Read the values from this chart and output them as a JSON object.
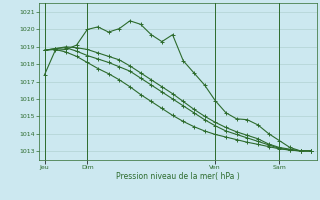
{
  "xlabel": "Pression niveau de la mer( hPa )",
  "bg_color": "#cce8f0",
  "grid_color": "#aacccc",
  "line_color": "#2d6b2d",
  "ylim": [
    1012.5,
    1021.5
  ],
  "day_labels": [
    "Jeu",
    "Dim",
    "Ven",
    "Sam"
  ],
  "day_positions": [
    0,
    4,
    16,
    22
  ],
  "series1_x": [
    0,
    1,
    2,
    3,
    4,
    5,
    6,
    7,
    8,
    9,
    10,
    11,
    12,
    13,
    14,
    15,
    16,
    17,
    18,
    19,
    20,
    21,
    22,
    23,
    24,
    25
  ],
  "series1": [
    1017.4,
    1018.8,
    1018.85,
    1019.1,
    1020.0,
    1020.15,
    1019.85,
    1020.05,
    1020.5,
    1020.3,
    1019.7,
    1019.3,
    1019.7,
    1018.2,
    1017.5,
    1016.8,
    1015.9,
    1015.2,
    1014.85,
    1014.8,
    1014.5,
    1014.0,
    1013.6,
    1013.2,
    1013.0,
    1013.0
  ],
  "series2": [
    1018.8,
    1018.9,
    1019.0,
    1018.95,
    1018.85,
    1018.65,
    1018.45,
    1018.25,
    1017.9,
    1017.5,
    1017.1,
    1016.7,
    1016.3,
    1015.85,
    1015.4,
    1015.0,
    1014.65,
    1014.35,
    1014.1,
    1013.9,
    1013.7,
    1013.4,
    1013.2,
    1013.1,
    1013.0,
    1013.0
  ],
  "series3": [
    1018.8,
    1018.9,
    1018.95,
    1018.75,
    1018.5,
    1018.3,
    1018.1,
    1017.85,
    1017.6,
    1017.2,
    1016.8,
    1016.4,
    1016.0,
    1015.6,
    1015.2,
    1014.8,
    1014.45,
    1014.15,
    1013.95,
    1013.75,
    1013.55,
    1013.35,
    1013.15,
    1013.05,
    1013.0,
    1013.0
  ],
  "series4": [
    1018.8,
    1018.85,
    1018.7,
    1018.45,
    1018.1,
    1017.75,
    1017.45,
    1017.1,
    1016.7,
    1016.25,
    1015.85,
    1015.45,
    1015.05,
    1014.7,
    1014.4,
    1014.15,
    1013.95,
    1013.8,
    1013.65,
    1013.5,
    1013.38,
    1013.25,
    1013.12,
    1013.05,
    1013.0,
    1013.0
  ],
  "n_points": 26,
  "yticks": [
    1013,
    1014,
    1015,
    1016,
    1017,
    1018,
    1019,
    1020,
    1021
  ]
}
